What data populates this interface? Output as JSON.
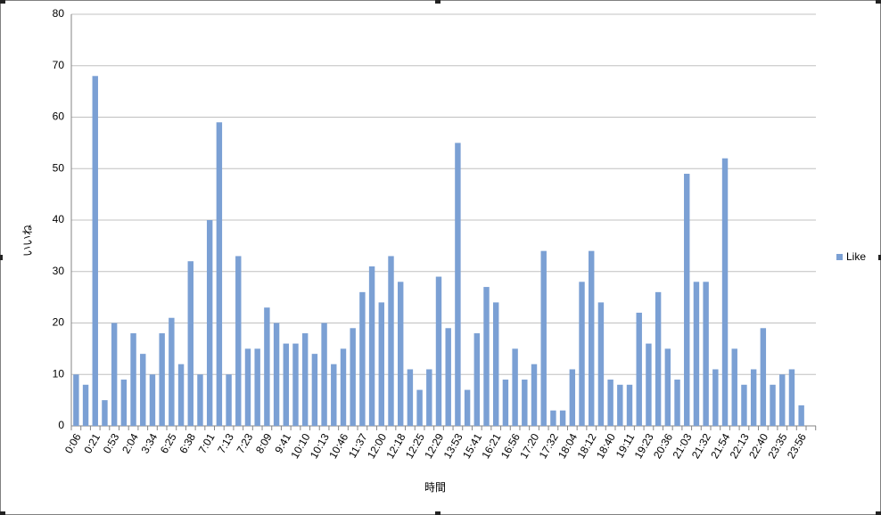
{
  "chart_data": {
    "type": "bar",
    "x_label": "時間",
    "y_label": "いいね",
    "categories": [
      "0:06",
      null,
      "0:21",
      null,
      "0:53",
      null,
      "2:04",
      null,
      "3:34",
      null,
      "6:25",
      null,
      "6:38",
      null,
      "7:01",
      null,
      "7:13",
      null,
      "7:23",
      null,
      "8:09",
      null,
      "9:41",
      null,
      "10:10",
      null,
      "10:13",
      null,
      "10:46",
      null,
      "11:37",
      null,
      "12:00",
      null,
      "12:18",
      null,
      "12:25",
      null,
      "12:29",
      null,
      "13:53",
      null,
      "15:41",
      null,
      "16:21",
      null,
      "16:56",
      null,
      "17:20",
      null,
      "17:32",
      null,
      "18:04",
      null,
      "18:12",
      null,
      "18:40",
      null,
      "19:11",
      null,
      "19:23",
      null,
      "20:36",
      null,
      "21:03",
      null,
      "21:32",
      null,
      "21:54",
      null,
      "22:13",
      null,
      "22:40",
      null,
      "23:35",
      null,
      "23:56"
    ],
    "series": [
      {
        "name": "Like",
        "color": "#7ba0d4",
        "values": [
          10,
          8,
          68,
          5,
          20,
          9,
          18,
          14,
          10,
          18,
          21,
          12,
          32,
          10,
          40,
          59,
          10,
          33,
          15,
          15,
          23,
          20,
          16,
          16,
          18,
          14,
          20,
          12,
          15,
          19,
          26,
          31,
          24,
          33,
          28,
          11,
          7,
          11,
          29,
          19,
          55,
          7,
          18,
          27,
          24,
          9,
          15,
          9,
          12,
          34,
          3,
          3,
          11,
          28,
          34,
          24,
          9,
          8,
          8,
          22,
          16,
          26,
          15,
          9,
          49,
          28,
          28,
          11,
          52,
          15,
          8,
          11,
          19,
          8,
          10,
          11,
          4
        ]
      }
    ],
    "ylim": [
      0,
      80
    ],
    "yticks": [
      0,
      10,
      20,
      30,
      40,
      50,
      60,
      70,
      80
    ],
    "grid": true,
    "legend": "right"
  }
}
